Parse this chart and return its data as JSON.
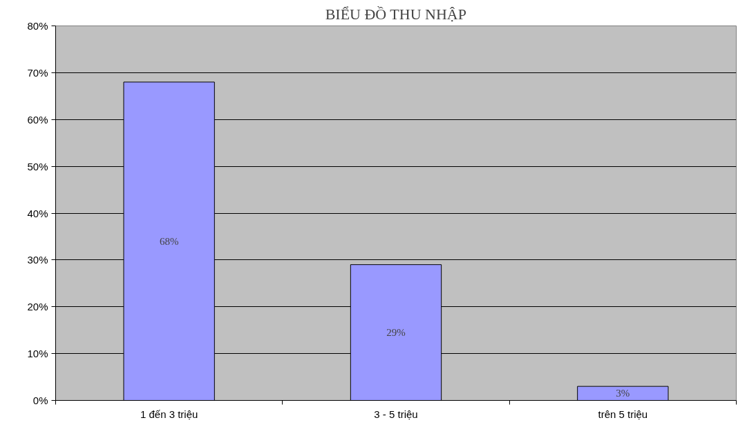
{
  "chart_data": {
    "type": "bar",
    "title": "BIỂU ĐỒ THU NHẬP",
    "categories": [
      "1 đến 3 triệu",
      "3 - 5 triệu",
      "trên 5 triệu"
    ],
    "values": [
      68,
      29,
      3
    ],
    "value_labels": [
      "68%",
      "29%",
      "3%"
    ],
    "color": "#9999ff",
    "ylim": [
      0,
      80
    ],
    "yticks": [
      {
        "value": 0,
        "label": "0%"
      },
      {
        "value": 10,
        "label": "10%"
      },
      {
        "value": 20,
        "label": "20%"
      },
      {
        "value": 30,
        "label": "30%"
      },
      {
        "value": 40,
        "label": "40%"
      },
      {
        "value": 50,
        "label": "50%"
      },
      {
        "value": 60,
        "label": "60%"
      },
      {
        "value": 70,
        "label": "70%"
      },
      {
        "value": 80,
        "label": "80%"
      }
    ],
    "grid": "y"
  }
}
